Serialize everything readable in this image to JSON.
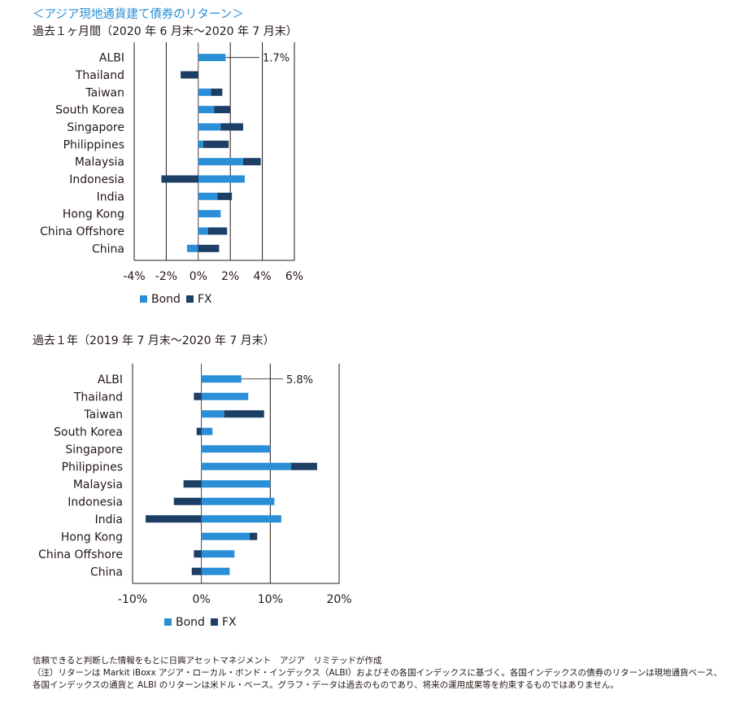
{
  "heading": "＜アジア現地通貨建て債券のリターン＞",
  "colors": {
    "bond": "#2a8fd6",
    "fx": "#1d3f66"
  },
  "chart_data": [
    {
      "type": "bar",
      "stacked": true,
      "orientation": "horizontal",
      "title": "過去１ヶ月間（2020 年 6 月末〜2020 年 7 月末）",
      "categories": [
        "ALBI",
        "Thailand",
        "Taiwan",
        "South Korea",
        "Singapore",
        "Philippines",
        "Malaysia",
        "Indonesia",
        "India",
        "Hong Kong",
        "China Offshore",
        "China"
      ],
      "series": [
        {
          "name": "Bond",
          "values": [
            1.7,
            0.0,
            0.8,
            1.0,
            1.4,
            0.3,
            2.8,
            2.9,
            1.2,
            1.4,
            0.6,
            -0.7
          ]
        },
        {
          "name": "FX",
          "values": [
            0.0,
            -1.1,
            0.7,
            1.0,
            1.4,
            1.6,
            1.1,
            -2.3,
            0.9,
            0.0,
            1.2,
            1.3
          ]
        }
      ],
      "xlim": [
        -4,
        6
      ],
      "ticks": [
        "-4%",
        "-2%",
        "0%",
        "2%",
        "4%",
        "6%"
      ],
      "tick_values": [
        -4,
        -2,
        0,
        2,
        4,
        6
      ],
      "gridlines": [
        -2,
        2,
        4
      ],
      "annotation": {
        "category": "ALBI",
        "value": 1.7,
        "text": "1.7%"
      },
      "legend": {
        "position": "bottom-center",
        "entries": [
          "Bond",
          "FX"
        ]
      },
      "grid": true
    },
    {
      "type": "bar",
      "stacked": true,
      "orientation": "horizontal",
      "title": "過去１年（2019 年 7 月末〜2020 年 7 月末）",
      "categories": [
        "ALBI",
        "Thailand",
        "Taiwan",
        "South Korea",
        "Singapore",
        "Philippines",
        "Malaysia",
        "Indonesia",
        "India",
        "Hong Kong",
        "China Offshore",
        "China"
      ],
      "series": [
        {
          "name": "Bond",
          "values": [
            5.8,
            6.8,
            3.3,
            1.6,
            10.0,
            13.0,
            10.0,
            10.6,
            11.6,
            7.0,
            4.8,
            4.1
          ]
        },
        {
          "name": "FX",
          "values": [
            0.0,
            -1.1,
            5.8,
            -0.7,
            0.0,
            3.8,
            -2.6,
            -4.0,
            -8.1,
            1.1,
            -1.1,
            -1.4
          ]
        }
      ],
      "xlim": [
        -10,
        20
      ],
      "ticks": [
        "-10%",
        "0%",
        "10%",
        "20%"
      ],
      "tick_values": [
        -10,
        0,
        10,
        20
      ],
      "gridlines": [
        10,
        20
      ],
      "annotation": {
        "category": "ALBI",
        "value": 5.8,
        "text": "5.8%"
      },
      "legend": {
        "position": "bottom-center",
        "entries": [
          "Bond",
          "FX"
        ]
      },
      "grid": true
    }
  ],
  "footnotes": {
    "line1": "信頼できると判断した情報をもとに日興アセットマネジメント　アジア　リミテッドが作成",
    "line2": "（注）リターンは Markit iBoxx アジア・ローカル・ボンド・インデックス（ALBI）およびその各国インデックスに基づく。各国インデックスの債券のリターンは現地通貨ベース、各国インデックスの通貨と ALBI のリターンは米ドル・ベース。グラフ・データは過去のものであり、将来の運用成果等を約束するものではありません。"
  }
}
